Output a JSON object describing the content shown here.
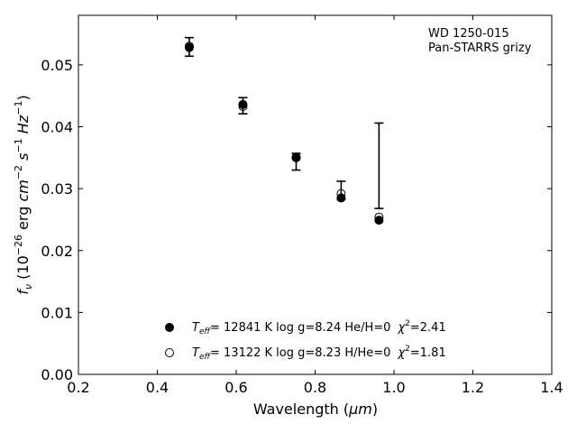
{
  "chart_data": {
    "type": "scatter",
    "xlabel_text": "Wavelength (",
    "xlabel_unit": "μm",
    "xlabel_close": ")",
    "ylabel": "fν (10⁻²⁶ erg cm⁻² s⁻¹ Hz⁻¹)",
    "annotation": [
      "WD 1250-015",
      "Pan-STARRS grizy"
    ],
    "xlim": [
      0.2,
      1.4
    ],
    "ylim": [
      0.0,
      0.058
    ],
    "x_ticks": [
      "0.2",
      "0.4",
      "0.6",
      "0.8",
      "1.0",
      "1.2",
      "1.4"
    ],
    "y_ticks": [
      "0.00",
      "0.01",
      "0.02",
      "0.03",
      "0.04",
      "0.05"
    ],
    "observed": {
      "x": [
        0.481,
        0.617,
        0.752,
        0.866,
        0.962
      ],
      "y_low": [
        0.0514,
        0.0421,
        0.033,
        0.0283,
        0.0268
      ],
      "y_high": [
        0.0544,
        0.0447,
        0.0357,
        0.0312,
        0.0406
      ]
    },
    "series": [
      {
        "name": "Teff= 12841 K  log g=8.24  He/H=0  χ²=2.41",
        "marker": "filled",
        "x": [
          0.481,
          0.617,
          0.752,
          0.866,
          0.962
        ],
        "y": [
          0.0528,
          0.0436,
          0.035,
          0.0285,
          0.0249
        ]
      },
      {
        "name": "Teff= 13122 K  log g=8.23  H/He=0  χ²=1.81",
        "marker": "open",
        "x": [
          0.481,
          0.617,
          0.752,
          0.866,
          0.962
        ],
        "y": [
          0.053,
          0.0433,
          0.0351,
          0.0292,
          0.0254
        ]
      }
    ],
    "legend": [
      {
        "marker": "filled",
        "teff": "12841",
        "rest": "= 12841 K  log g=8.24  He/H=0",
        "chi2": "=2.41"
      },
      {
        "marker": "open",
        "teff": "13122",
        "rest": "= 13122 K  log g=8.23  H/He=0",
        "chi2": "=1.81"
      }
    ],
    "legend_position": "lower-center",
    "grid": false
  }
}
